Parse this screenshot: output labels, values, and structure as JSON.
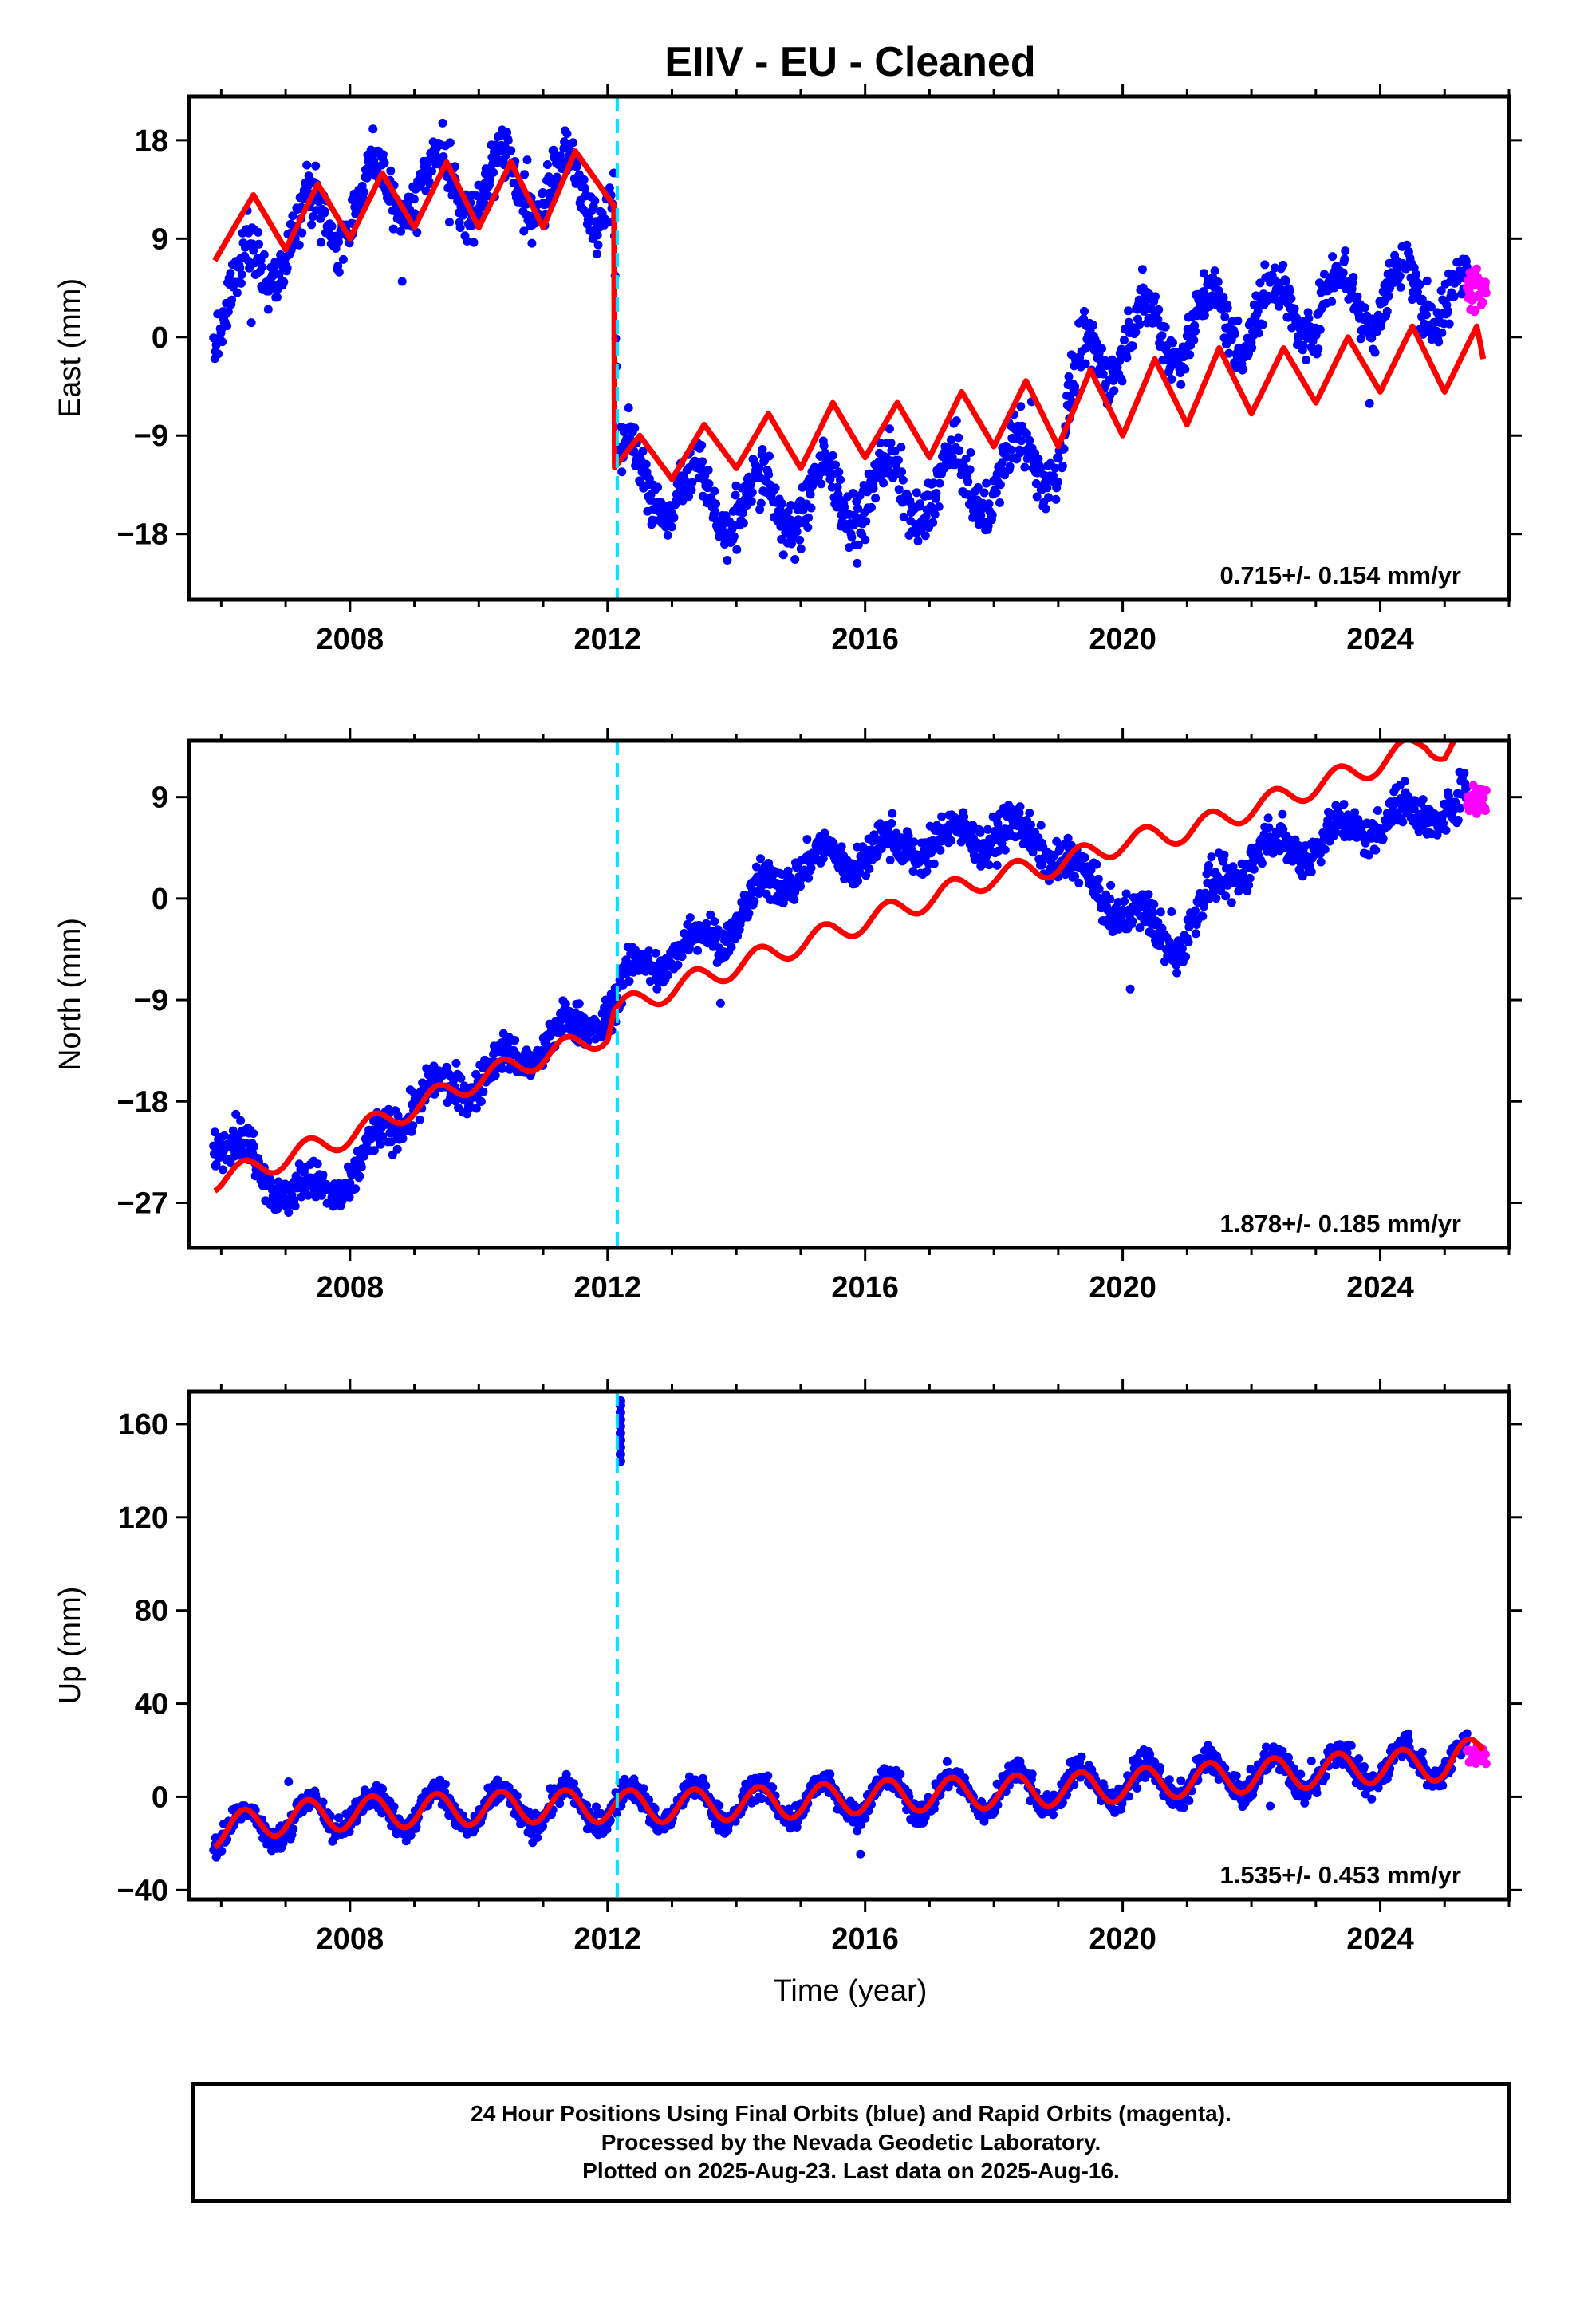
{
  "chart_data": {
    "type": "scatter",
    "title": "EIIV  - EU - Cleaned",
    "xlabel": "Time (year)",
    "xlim": [
      2005.5,
      2026.0
    ],
    "x_ticks": [
      2008,
      2012,
      2016,
      2020,
      2024
    ],
    "event_line_x": 2012.15,
    "series_legend": {
      "final_orbits": "blue",
      "rapid_orbits": "magenta",
      "model": "red"
    },
    "panels": [
      {
        "name": "east",
        "ylabel": "East (mm)",
        "ylim": [
          -24,
          22
        ],
        "y_ticks": [
          18,
          9,
          0,
          -9,
          -18
        ],
        "rate_text": "0.715+/- 0.154 mm/yr",
        "model_points": [
          [
            2005.9,
            7
          ],
          [
            2006.5,
            13
          ],
          [
            2007.0,
            8
          ],
          [
            2007.5,
            14
          ],
          [
            2008.0,
            9
          ],
          [
            2008.5,
            15
          ],
          [
            2009.0,
            10
          ],
          [
            2009.5,
            16
          ],
          [
            2010.0,
            10
          ],
          [
            2010.5,
            16
          ],
          [
            2011.0,
            10
          ],
          [
            2011.5,
            17
          ],
          [
            2012.1,
            12
          ],
          [
            2012.1,
            -12
          ],
          [
            2012.5,
            -9
          ],
          [
            2013.0,
            -13
          ],
          [
            2013.5,
            -8
          ],
          [
            2014.0,
            -12
          ],
          [
            2014.5,
            -7
          ],
          [
            2015.0,
            -12
          ],
          [
            2015.5,
            -6
          ],
          [
            2016.0,
            -11
          ],
          [
            2016.5,
            -6
          ],
          [
            2017.0,
            -11
          ],
          [
            2017.5,
            -5
          ],
          [
            2018.0,
            -10
          ],
          [
            2018.5,
            -4
          ],
          [
            2019.0,
            -10
          ],
          [
            2019.5,
            -3
          ],
          [
            2020.0,
            -9
          ],
          [
            2020.5,
            -2
          ],
          [
            2021.0,
            -8
          ],
          [
            2021.5,
            -1
          ],
          [
            2022.0,
            -7
          ],
          [
            2022.5,
            -1
          ],
          [
            2023.0,
            -6
          ],
          [
            2023.5,
            0
          ],
          [
            2024.0,
            -5
          ],
          [
            2024.5,
            1
          ],
          [
            2025.0,
            -5
          ],
          [
            2025.5,
            1
          ],
          [
            2025.6,
            -2
          ]
        ],
        "data_trend": [
          [
            2005.9,
            2
          ],
          [
            2006.5,
            6
          ],
          [
            2007.0,
            9
          ],
          [
            2008.0,
            12
          ],
          [
            2009.0,
            14
          ],
          [
            2010.0,
            14
          ],
          [
            2011.0,
            14
          ],
          [
            2012.1,
            13
          ],
          [
            2012.15,
            -12
          ],
          [
            2013.0,
            -14
          ],
          [
            2014.0,
            -15
          ],
          [
            2015.0,
            -15
          ],
          [
            2016.0,
            -14
          ],
          [
            2017.0,
            -14
          ],
          [
            2018.0,
            -13
          ],
          [
            2019.0,
            -10
          ],
          [
            2019.5,
            -2
          ],
          [
            2020.0,
            0
          ],
          [
            2021.0,
            1
          ],
          [
            2022.0,
            2
          ],
          [
            2023.0,
            3
          ],
          [
            2024.0,
            4
          ],
          [
            2025.0,
            4
          ],
          [
            2025.6,
            4
          ]
        ],
        "data_amplitude": 3.0,
        "data_scatter": 2.2
      },
      {
        "name": "north",
        "ylabel": "North (mm)",
        "ylim": [
          -31,
          14
        ],
        "y_ticks": [
          9,
          0,
          -9,
          -18,
          -27
        ],
        "rate_text": "1.878+/- 0.185 mm/yr",
        "model_points": [
          [
            2005.9,
            -25
          ],
          [
            2006.5,
            -24
          ],
          [
            2007.0,
            -23
          ],
          [
            2008.0,
            -21
          ],
          [
            2009.0,
            -18.5
          ],
          [
            2010.0,
            -16
          ],
          [
            2011.0,
            -14
          ],
          [
            2012.0,
            -12
          ],
          [
            2012.1,
            -10
          ],
          [
            2013.0,
            -8
          ],
          [
            2014.0,
            -6
          ],
          [
            2015.0,
            -4
          ],
          [
            2016.0,
            -2
          ],
          [
            2017.0,
            0
          ],
          [
            2018.0,
            2
          ],
          [
            2019.0,
            3
          ],
          [
            2020.0,
            5
          ],
          [
            2021.0,
            6
          ],
          [
            2022.0,
            8
          ],
          [
            2023.0,
            10
          ],
          [
            2024.0,
            12
          ],
          [
            2024.7,
            14
          ],
          [
            2025.0,
            13
          ],
          [
            2025.2,
            14
          ]
        ],
        "model_amplitude": 1.0,
        "data_trend": [
          [
            2005.9,
            -21
          ],
          [
            2006.5,
            -23
          ],
          [
            2007.0,
            -26
          ],
          [
            2007.5,
            -26
          ],
          [
            2008.0,
            -25
          ],
          [
            2008.5,
            -21
          ],
          [
            2009.0,
            -18
          ],
          [
            2010.0,
            -16
          ],
          [
            2011.0,
            -13
          ],
          [
            2012.0,
            -10
          ],
          [
            2012.5,
            -6
          ],
          [
            2013.0,
            -5
          ],
          [
            2014.0,
            -2
          ],
          [
            2014.5,
            1
          ],
          [
            2015.0,
            3
          ],
          [
            2016.0,
            4
          ],
          [
            2017.0,
            5
          ],
          [
            2018.0,
            6
          ],
          [
            2018.8,
            5
          ],
          [
            2019.5,
            1
          ],
          [
            2020.0,
            -1
          ],
          [
            2020.8,
            -4
          ],
          [
            2021.5,
            1
          ],
          [
            2022.0,
            4
          ],
          [
            2023.0,
            5
          ],
          [
            2024.0,
            7
          ],
          [
            2025.0,
            8
          ],
          [
            2025.6,
            9
          ]
        ],
        "data_amplitude": 1.2,
        "data_scatter": 1.6
      },
      {
        "name": "up",
        "ylabel": "Up (mm)",
        "ylim": [
          -44,
          174
        ],
        "y_ticks": [
          160,
          120,
          80,
          40,
          0,
          -40
        ],
        "rate_text": "1.535+/- 0.453 mm/yr",
        "model_points": [
          [
            2005.9,
            -15
          ],
          [
            2007.0,
            -9
          ],
          [
            2008.0,
            -7
          ],
          [
            2009.0,
            -6
          ],
          [
            2010.0,
            -5
          ],
          [
            2011.0,
            -4
          ],
          [
            2012.0,
            -4
          ],
          [
            2013.0,
            -4
          ],
          [
            2014.0,
            -3
          ],
          [
            2015.0,
            -2
          ],
          [
            2016.0,
            0
          ],
          [
            2017.0,
            1
          ],
          [
            2018.0,
            2
          ],
          [
            2019.0,
            3
          ],
          [
            2020.0,
            5
          ],
          [
            2021.0,
            7
          ],
          [
            2022.0,
            9
          ],
          [
            2023.0,
            11
          ],
          [
            2024.0,
            13
          ],
          [
            2025.0,
            14
          ],
          [
            2025.6,
            20
          ]
        ],
        "model_amplitude": 7.0,
        "data_trend": [
          [
            2005.9,
            -15
          ],
          [
            2008.0,
            -6
          ],
          [
            2010.0,
            -5
          ],
          [
            2012.0,
            -4
          ],
          [
            2014.0,
            -3
          ],
          [
            2016.0,
            0
          ],
          [
            2018.0,
            2
          ],
          [
            2020.0,
            6
          ],
          [
            2022.0,
            9
          ],
          [
            2024.0,
            13
          ],
          [
            2025.6,
            18
          ]
        ],
        "data_amplitude": 8.0,
        "data_scatter": 5.0,
        "spike": {
          "x": 2012.2,
          "y_values": [
            170,
            168,
            165,
            162,
            159,
            156,
            153,
            150,
            147,
            144
          ]
        }
      }
    ]
  },
  "footer": {
    "line1": "24 Hour Positions Using Final Orbits (blue) and Rapid Orbits (magenta).",
    "line2": "Processed by the Nevada Geodetic Laboratory.",
    "line3": "Plotted on 2025-Aug-23. Last data on 2025-Aug-16."
  },
  "colors": {
    "final": "#0000ff",
    "rapid": "#ff00ff",
    "model": "#ff0000",
    "event": "#00e5ff"
  }
}
